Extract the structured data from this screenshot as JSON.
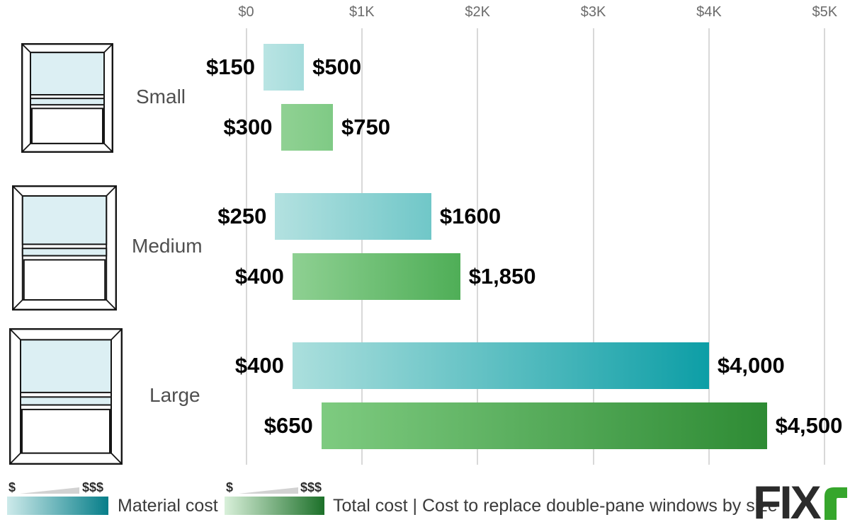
{
  "chart_data": {
    "type": "bar",
    "orientation": "horizontal-range",
    "title": "Cost to replace double-pane windows by size",
    "x_axis": {
      "xlim": [
        0,
        5000
      ],
      "grid": true,
      "ticks": [
        {
          "label": "$0",
          "value": 0
        },
        {
          "label": "$1K",
          "value": 1000
        },
        {
          "label": "$2K",
          "value": 2000
        },
        {
          "label": "$3K",
          "value": 3000
        },
        {
          "label": "$4K",
          "value": 4000
        },
        {
          "label": "$5K",
          "value": 5000
        }
      ]
    },
    "groups": [
      {
        "label": "Small",
        "icon": "window-icon-small",
        "bars": [
          {
            "series": "Material cost",
            "low": 150,
            "high": 500,
            "low_label": "$150",
            "high_label": "$500",
            "gradient": [
              "#b9e4e3",
              "#a5dcdc"
            ]
          },
          {
            "series": "Total cost",
            "low": 300,
            "high": 750,
            "low_label": "$300",
            "high_label": "$750",
            "gradient": [
              "#90d193",
              "#7fca85"
            ]
          }
        ]
      },
      {
        "label": "Medium",
        "icon": "window-icon-medium",
        "bars": [
          {
            "series": "Material cost",
            "low": 250,
            "high": 1600,
            "low_label": "$250",
            "high_label": "$1600",
            "gradient": [
              "#b3e1e0",
              "#70c7c8"
            ]
          },
          {
            "series": "Total cost",
            "low": 400,
            "high": 1850,
            "low_label": "$400",
            "high_label": "$1,850",
            "gradient": [
              "#8ed092",
              "#4fae57"
            ]
          }
        ]
      },
      {
        "label": "Large",
        "icon": "window-icon-large",
        "bars": [
          {
            "series": "Material cost",
            "low": 400,
            "high": 4000,
            "low_label": "$400",
            "high_label": "$4,000",
            "gradient": [
              "#abdfdd",
              "#0d9ea6"
            ]
          },
          {
            "series": "Total cost",
            "low": 650,
            "high": 4500,
            "low_label": "$650",
            "high_label": "$4,500",
            "gradient": [
              "#7ecb80",
              "#2e8b34"
            ]
          }
        ]
      }
    ],
    "legend_position": "bottom"
  },
  "legend": {
    "items": [
      {
        "label": "Material cost",
        "scale_low": "$",
        "scale_high": "$$$",
        "gradient": [
          "#cdeaea",
          "#067e89"
        ]
      },
      {
        "label": "Total cost | Cost to replace double-pane windows by size",
        "scale_low": "$",
        "scale_high": "$$$",
        "gradient": [
          "#d9f0da",
          "#1c7029"
        ]
      }
    ]
  },
  "logo": {
    "text_dark": "FIX",
    "text_green": "r",
    "green": "#36a62c",
    "dark": "#2b2b2b"
  },
  "colors": {
    "background": "#ffffff",
    "gridline": "#d8d8d8",
    "axis_label": "#6b6b6b",
    "category_label": "#4f4f4f",
    "value_label": "#000000",
    "window_glass": "#dceff3",
    "window_stroke": "#161616",
    "legend_triangle": "#d2d2d2"
  }
}
